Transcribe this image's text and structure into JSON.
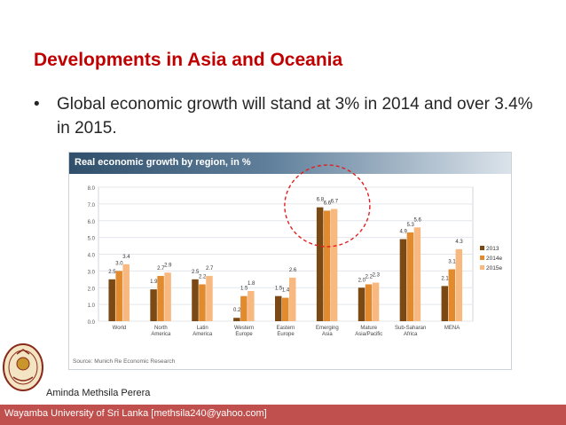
{
  "slide": {
    "title": "Developments in Asia and Oceania",
    "bullet_text": "Global economic growth will stand at 3% in 2014 and over 3.4% in 2015."
  },
  "chart_data": {
    "type": "bar",
    "title": "Real economic growth by region, in %",
    "source": "Source: Munich Re Economic Research",
    "categories": [
      [
        "World"
      ],
      [
        "North",
        "America"
      ],
      [
        "Latin",
        "America"
      ],
      [
        "Western",
        "Europe"
      ],
      [
        "Eastern",
        "Europe"
      ],
      [
        "Emerging",
        "Asia"
      ],
      [
        "Mature",
        "Asia/Pacific"
      ],
      [
        "Sub-Saharan",
        "Africa"
      ],
      [
        "MENA"
      ]
    ],
    "series": [
      {
        "name": "2013",
        "color": "#7b4a14",
        "values": [
          2.5,
          1.9,
          2.5,
          0.2,
          1.5,
          6.8,
          2.0,
          4.9,
          2.1
        ]
      },
      {
        "name": "2014e",
        "color": "#e28a2e",
        "values": [
          3.0,
          2.7,
          2.2,
          1.5,
          1.4,
          6.6,
          2.2,
          5.3,
          3.1
        ]
      },
      {
        "name": "2015e",
        "color": "#f8b980",
        "values": [
          3.4,
          2.9,
          2.7,
          1.8,
          2.6,
          6.7,
          2.3,
          5.6,
          4.3
        ]
      }
    ],
    "value_labels": [
      [
        "2.5",
        "3.0",
        "3.4"
      ],
      [
        "1.9",
        "2.7",
        "2.9"
      ],
      [
        "2.5",
        "2.2",
        "2.7"
      ],
      [
        "0.2",
        "1.5",
        "1.8"
      ],
      [
        "1.5",
        "1.4",
        "2.6"
      ],
      [
        "6.8",
        "6.6",
        "6.7"
      ],
      [
        "2.0",
        "2.2",
        "2.3"
      ],
      [
        "4.9",
        "5.3",
        "5.6"
      ],
      [
        "2.1",
        "3.1",
        "4.3"
      ]
    ],
    "y_ticks": [
      "8.0",
      "7.0",
      "6.0",
      "5.0",
      "4.0",
      "3.0",
      "2.0",
      "1.0",
      "0.0"
    ],
    "ylim": [
      0,
      8
    ],
    "grid": true,
    "legend_position": "right",
    "highlight": "Emerging Asia",
    "highlight_color": "#e02020",
    "xlabel": "",
    "ylabel": ""
  },
  "footer": {
    "author": "Aminda Methsila Perera",
    "institution": "Wayamba University of Sri Lanka  [methsila240@yahoo.com]"
  }
}
